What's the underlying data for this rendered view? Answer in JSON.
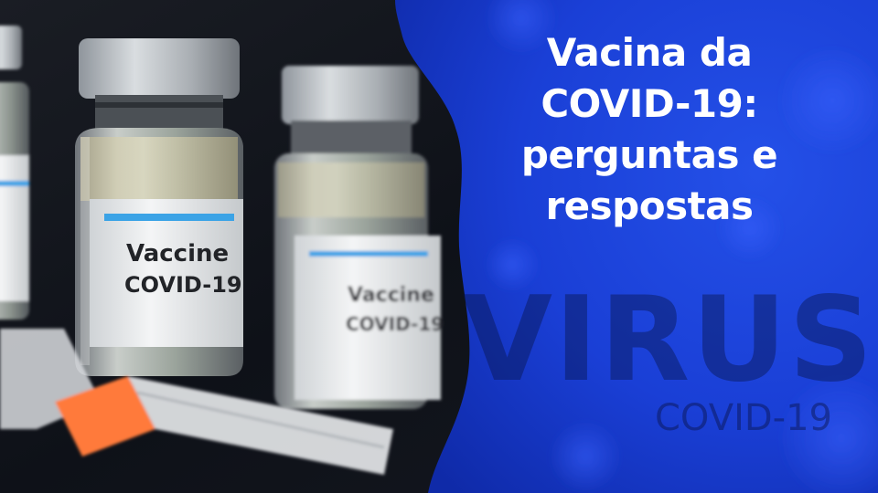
{
  "headline": {
    "line1": "Vacina da",
    "line2": "COVID-19:",
    "line3": "perguntas e",
    "line4": "respostas"
  },
  "vial_front": {
    "label_line1": "Vaccine",
    "label_line2": "COVID-19"
  },
  "vial_back": {
    "label_line1": "Vaccine",
    "label_line2": "COVID-19"
  },
  "background_watermark": {
    "word": "VIRUS",
    "subtitle": "COVID-19"
  },
  "colors": {
    "panel_blue": "#1a3fd6",
    "panel_deep_blue": "#0f2aa8",
    "headline_text": "#ffffff",
    "label_stripe": "#3ba3e6",
    "syringe_orange": "#ff7a3a"
  },
  "icons": [
    "vaccine-vial",
    "syringe",
    "virus-particle"
  ]
}
